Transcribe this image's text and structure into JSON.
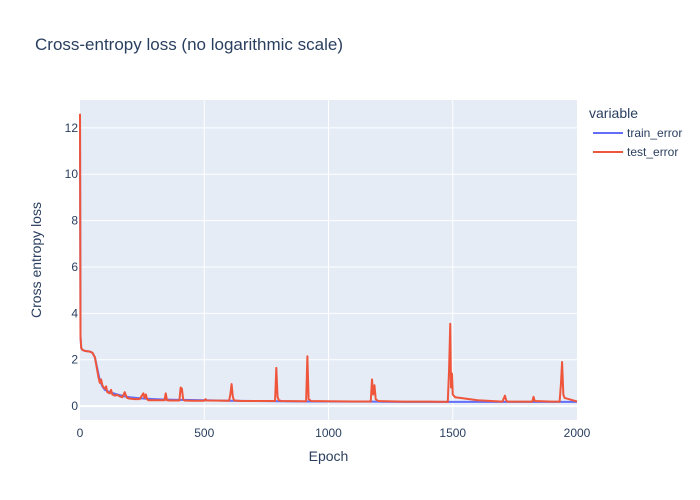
{
  "chart_data": {
    "type": "line",
    "title": "Cross-entropy loss (no logarithmic scale)",
    "xlabel": "Epoch",
    "ylabel": "Cross entropy loss",
    "xlim": [
      0,
      2000
    ],
    "ylim": [
      -0.6,
      13.2
    ],
    "xticks": [
      0,
      500,
      1000,
      1500,
      2000
    ],
    "xtick_labels": [
      "0",
      "500",
      "1000",
      "1500",
      "2000"
    ],
    "yticks": [
      0,
      2,
      4,
      6,
      8,
      10,
      12
    ],
    "ytick_labels": [
      "0",
      "2",
      "4",
      "6",
      "8",
      "10",
      "12"
    ],
    "grid": true,
    "legend": {
      "title": "variable",
      "position": "top-right"
    },
    "series": [
      {
        "name": "train_error",
        "color": "#636efa",
        "x": [
          0,
          2,
          5,
          10,
          20,
          40,
          50,
          60,
          70,
          80,
          90,
          100,
          120,
          150,
          180,
          200,
          230,
          260,
          300,
          350,
          400,
          450,
          500,
          550,
          600,
          700,
          800,
          900,
          1000,
          1100,
          1200,
          1300,
          1400,
          1500,
          1600,
          1700,
          1800,
          1900,
          2000
        ],
        "y": [
          12.6,
          3.0,
          2.5,
          2.42,
          2.38,
          2.35,
          2.3,
          2.1,
          1.6,
          1.1,
          0.85,
          0.7,
          0.6,
          0.5,
          0.42,
          0.38,
          0.35,
          0.32,
          0.3,
          0.28,
          0.27,
          0.26,
          0.25,
          0.24,
          0.23,
          0.22,
          0.21,
          0.2,
          0.2,
          0.19,
          0.19,
          0.18,
          0.18,
          0.18,
          0.18,
          0.18,
          0.18,
          0.18,
          0.18
        ]
      },
      {
        "name": "test_error",
        "color": "#ef553b",
        "x": [
          0,
          2,
          5,
          10,
          20,
          40,
          50,
          60,
          65,
          70,
          75,
          80,
          85,
          90,
          95,
          100,
          105,
          110,
          120,
          125,
          130,
          140,
          150,
          160,
          170,
          180,
          185,
          190,
          200,
          220,
          240,
          255,
          260,
          265,
          270,
          275,
          280,
          300,
          340,
          345,
          350,
          360,
          400,
          405,
          410,
          415,
          420,
          450,
          500,
          505,
          510,
          600,
          605,
          610,
          615,
          620,
          650,
          700,
          785,
          790,
          795,
          800,
          810,
          900,
          910,
          915,
          920,
          930,
          1000,
          1100,
          1170,
          1175,
          1180,
          1185,
          1190,
          1200,
          1300,
          1400,
          1480,
          1485,
          1490,
          1493,
          1497,
          1500,
          1510,
          1600,
          1700,
          1710,
          1715,
          1720,
          1820,
          1825,
          1830,
          1900,
          1930,
          1935,
          1940,
          1945,
          1950,
          2000
        ],
        "y": [
          12.6,
          3.0,
          2.5,
          2.42,
          2.38,
          2.35,
          2.3,
          2.1,
          1.8,
          1.5,
          1.2,
          1.0,
          1.15,
          0.9,
          0.8,
          0.75,
          0.85,
          0.6,
          0.55,
          0.7,
          0.5,
          0.45,
          0.48,
          0.42,
          0.38,
          0.6,
          0.45,
          0.35,
          0.32,
          0.3,
          0.3,
          0.55,
          0.35,
          0.5,
          0.3,
          0.25,
          0.25,
          0.25,
          0.25,
          0.55,
          0.25,
          0.24,
          0.24,
          0.8,
          0.75,
          0.3,
          0.24,
          0.23,
          0.23,
          0.3,
          0.24,
          0.23,
          0.5,
          0.95,
          0.4,
          0.24,
          0.22,
          0.22,
          0.22,
          1.65,
          0.4,
          0.25,
          0.22,
          0.21,
          0.21,
          2.15,
          0.3,
          0.22,
          0.21,
          0.2,
          0.2,
          1.15,
          0.5,
          0.9,
          0.3,
          0.22,
          0.19,
          0.19,
          0.18,
          1.5,
          3.55,
          0.8,
          1.4,
          0.5,
          0.38,
          0.25,
          0.19,
          0.45,
          0.25,
          0.19,
          0.19,
          0.4,
          0.22,
          0.19,
          0.19,
          0.9,
          1.9,
          0.5,
          0.35,
          0.2
        ]
      }
    ]
  }
}
